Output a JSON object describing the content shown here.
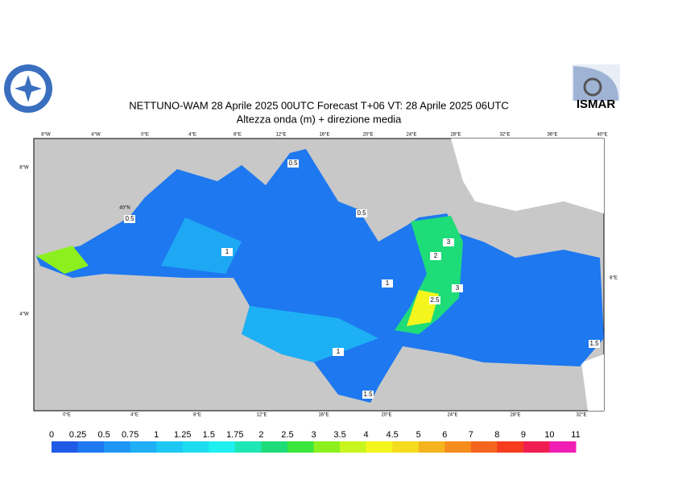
{
  "header": {
    "title": "NETTUNO-WAM  28   Aprile  2025 00UTC Forecast T+06 VT: 28   Aprile  2025 06UTC",
    "subtitle": "Altezza onda (m) + direzione media"
  },
  "logo": {
    "text": "ISMAR"
  },
  "map": {
    "lon_labels_top": [
      "8°W",
      "4°W",
      "0°E",
      "4°E",
      "8°E",
      "12°E",
      "16°E",
      "20°E",
      "24°E",
      "28°E",
      "32°E",
      "36°E",
      "40°E"
    ],
    "lon_labels_bottom": [
      "0°E",
      "4°E",
      "8°E",
      "12°E",
      "16°E",
      "20°E",
      "24°E",
      "28°E",
      "32°E"
    ],
    "lat_labels": [
      "8°W",
      "4°W",
      "40°N",
      "8°E"
    ],
    "contour_labels": [
      "0.5",
      "0.5",
      "0.5",
      "1",
      "1",
      "1",
      "1.5",
      "3",
      "2",
      "3",
      "2.5",
      "1.5"
    ]
  },
  "colorbar": {
    "ticks": [
      0,
      0.25,
      0.5,
      0.75,
      1,
      1.25,
      1.5,
      1.75,
      2,
      2.5,
      3,
      3.5,
      4,
      4.5,
      5,
      6,
      7,
      8,
      9,
      10,
      11
    ],
    "colors": [
      "#1e5ae6",
      "#1e78f0",
      "#1e96f5",
      "#1eaff5",
      "#1ec8f5",
      "#1edcf0",
      "#1ef0f0",
      "#1ee6b4",
      "#1edc78",
      "#3ce63c",
      "#8cf01e",
      "#c8f51e",
      "#f5f51e",
      "#f5dc1e",
      "#f5b41e",
      "#f58c1e",
      "#f5641e",
      "#f53c1e",
      "#f01e50",
      "#f01eb4"
    ]
  }
}
